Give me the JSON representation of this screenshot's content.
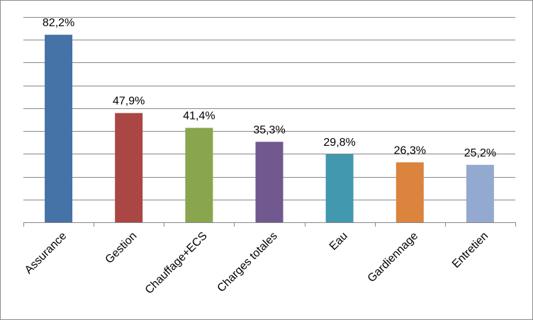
{
  "chart_data": {
    "type": "bar",
    "categories": [
      "Assurance",
      "Gestion",
      "Chauffage+ECS",
      "Charges totales",
      "Eau",
      "Gardiennage",
      "Entretien"
    ],
    "values": [
      82.2,
      47.9,
      41.4,
      35.3,
      29.8,
      26.3,
      25.2
    ],
    "value_labels": [
      "82,2%",
      "47,9%",
      "41,4%",
      "35,3%",
      "29,8%",
      "26,3%",
      "25,2%"
    ],
    "colors": [
      "#4572a7",
      "#aa4643",
      "#89a54e",
      "#71588f",
      "#4198af",
      "#db843d",
      "#93a9cf"
    ],
    "ylim": [
      0,
      90
    ],
    "grid": true,
    "legend": "none"
  }
}
